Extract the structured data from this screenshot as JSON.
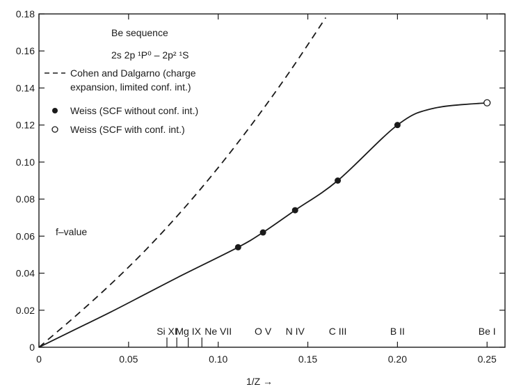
{
  "chart_data": {
    "type": "line",
    "xlabel": "1/Z →",
    "ylabel": "",
    "xlim": [
      0,
      0.26
    ],
    "ylim": [
      0,
      0.18
    ],
    "x_ticks": [
      "0",
      "0.05",
      "0.10",
      "0.15",
      "0.20",
      "0.25"
    ],
    "y_ticks": [
      "0",
      "0.02",
      "0.04",
      "0.06",
      "0.08",
      "0.10",
      "0.12",
      "0.14",
      "0.16",
      "0.18"
    ],
    "annotations": {
      "sequence": "Be sequence",
      "transition_main": "2s 2p ¹P⁰ – 2p² ¹S",
      "y_quantity": "f–value"
    },
    "legend": [
      {
        "style": "dashed",
        "text_line1": "Cohen and Dalgarno (charge",
        "text_line2": "expansion, limited conf. int.)"
      },
      {
        "style": "filled-circle",
        "text": "Weiss (SCF without conf. int.)"
      },
      {
        "style": "open-circle",
        "text": "Weiss (SCF with conf. int.)"
      }
    ],
    "legend_position": "top-left",
    "ions": [
      {
        "label": "Si XI",
        "x": 0.0714
      },
      {
        "label": "Mg IX",
        "x": 0.0833
      },
      {
        "label": "Ne VII",
        "x": 0.1
      },
      {
        "label": "O V",
        "x": 0.125
      },
      {
        "label": "N IV",
        "x": 0.1429
      },
      {
        "label": "C III",
        "x": 0.1667
      },
      {
        "label": "B II",
        "x": 0.2
      },
      {
        "label": "Be I",
        "x": 0.25
      }
    ],
    "ion_minor_ticks": [
      0.0714,
      0.0769,
      0.0833,
      0.0909
    ],
    "series": [
      {
        "name": "Cohen and Dalgarno (charge expansion, limited conf. int.)",
        "style": "dashed",
        "x": [
          0,
          0.02,
          0.04,
          0.06,
          0.08,
          0.1,
          0.12,
          0.14,
          0.16
        ],
        "y": [
          0,
          0.0165,
          0.034,
          0.053,
          0.074,
          0.097,
          0.122,
          0.149,
          0.178
        ]
      },
      {
        "name": "Weiss (SCF without conf. int.)",
        "style": "solid-curve",
        "x": [
          0,
          0.02,
          0.04,
          0.06,
          0.08,
          0.1111,
          0.125,
          0.1429,
          0.1667,
          0.2,
          0.22,
          0.25
        ],
        "y": [
          0,
          0.0095,
          0.019,
          0.029,
          0.039,
          0.054,
          0.062,
          0.074,
          0.09,
          0.12,
          0.129,
          0.132
        ]
      },
      {
        "name": "Weiss (SCF without conf. int.)",
        "style": "filled-points",
        "x": [
          0.1111,
          0.125,
          0.1429,
          0.1667,
          0.2
        ],
        "y": [
          0.054,
          0.062,
          0.074,
          0.09,
          0.12
        ]
      },
      {
        "name": "Weiss (SCF with conf. int.)",
        "style": "open-points",
        "x": [
          0.25
        ],
        "y": [
          0.132
        ]
      }
    ]
  }
}
